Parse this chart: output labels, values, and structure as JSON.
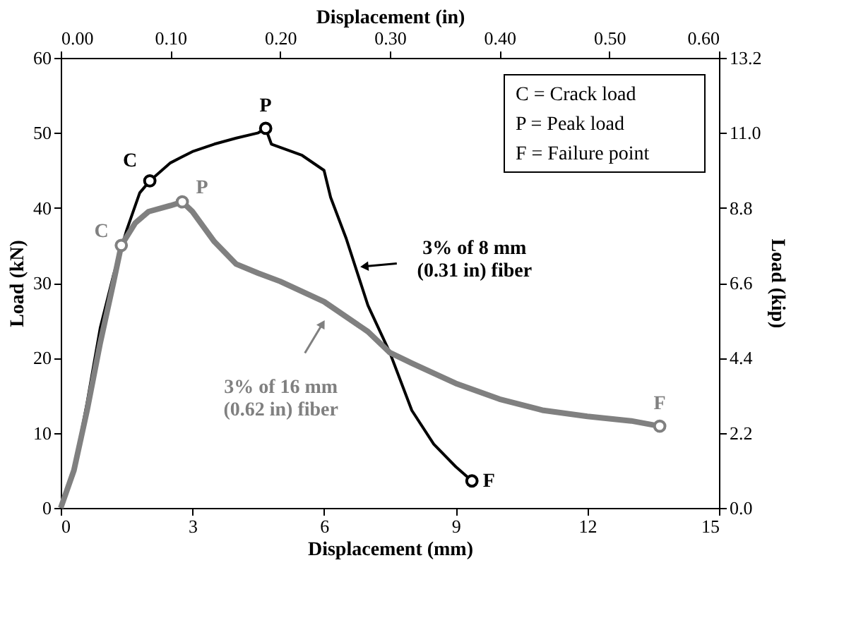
{
  "chart_data": {
    "type": "line",
    "xlabel": "Displacement (mm)",
    "ylabel": "Load (kN)",
    "x2label": "Displacement (in)",
    "y2label": "Load (kip)",
    "xlim": [
      0,
      15
    ],
    "xticks": [
      0,
      3,
      6,
      9,
      12,
      15
    ],
    "ylim": [
      0,
      60
    ],
    "yticks": [
      0,
      10,
      20,
      30,
      40,
      50,
      60
    ],
    "x2lim": [
      0,
      0.6
    ],
    "x2ticks": [
      {
        "value": 0,
        "label": "0.00"
      },
      {
        "value": 0.1,
        "label": "0.10"
      },
      {
        "value": 0.2,
        "label": "0.20"
      },
      {
        "value": 0.3,
        "label": "0.30"
      },
      {
        "value": 0.4,
        "label": "0.40"
      },
      {
        "value": 0.5,
        "label": "0.50"
      },
      {
        "value": 0.6,
        "label": "0.60"
      }
    ],
    "y2lim": [
      0,
      13.2
    ],
    "y2ticks": [
      {
        "value": 0,
        "label": "0.0"
      },
      2.2,
      4.4,
      6.6,
      8.8,
      {
        "value": 11,
        "label": "11.0"
      },
      13.2
    ],
    "grid": false,
    "legend": false,
    "marker": "none",
    "line_style": "solid",
    "series": [
      {
        "color": "#000000",
        "x": [
          0,
          0.3,
          0.6,
          0.9,
          1.2,
          1.5,
          1.8,
          2.03,
          2.5,
          3.0,
          3.5,
          4.0,
          4.5,
          4.67,
          4.8,
          5.5,
          6.0,
          6.15,
          6.5,
          7.0,
          7.5,
          8.0,
          8.5,
          9.0,
          9.37
        ],
        "values": [
          0,
          5,
          14,
          24,
          31,
          37,
          42,
          43.6,
          46,
          47.5,
          48.5,
          49.3,
          50,
          50.6,
          48.5,
          47,
          45,
          41.4,
          36,
          27,
          20.7,
          13,
          8.5,
          5.5,
          3.6
        ]
      },
      {
        "color": "#808080",
        "x": [
          0,
          0.3,
          0.6,
          0.9,
          1.2,
          1.38,
          1.7,
          2.0,
          2.5,
          2.77,
          3.0,
          3.5,
          4.0,
          4.5,
          5.0,
          6.0,
          7.0,
          7.5,
          8.0,
          9.0,
          10.0,
          11.0,
          12.0,
          13.0,
          13.65
        ],
        "values": [
          0,
          5,
          13,
          22,
          30,
          35,
          38,
          39.5,
          40.3,
          40.8,
          39.5,
          35.5,
          32.5,
          31.3,
          30.2,
          27.5,
          23.5,
          20.7,
          19.3,
          16.6,
          14.5,
          13,
          12.2,
          11.6,
          10.9
        ]
      },
      {
        "type": "scatter",
        "marker": "circle",
        "color": "#000000",
        "x": [
          2.03,
          4.67,
          9.37
        ],
        "values": [
          43.6,
          50.6,
          3.6
        ]
      },
      {
        "type": "scatter",
        "marker": "circle",
        "color": "#808080",
        "x": [
          1.38,
          2.77,
          13.65
        ],
        "values": [
          35.0,
          40.8,
          10.9
        ]
      }
    ],
    "annotations": [
      {
        "text": "C",
        "x": 2.03,
        "y": 43.6
      },
      {
        "text": "P",
        "x": 4.67,
        "y": 50.6
      },
      {
        "text": "F",
        "x": 9.37,
        "y": 3.6
      },
      {
        "text": "C",
        "x": 1.38,
        "y": 35.0
      },
      {
        "text": "P",
        "x": 2.77,
        "y": 40.8
      },
      {
        "text": "F",
        "x": 13.65,
        "y": 10.9
      },
      {
        "text": "3% of 8 mm\n(0.31 in) fiber",
        "x": 6.95,
        "y": 32.2
      },
      {
        "text": "3% of 16 mm\n(0.62 in) fiber",
        "x": 5.95,
        "y": 24.4
      },
      "C = Crack load",
      "P = Peak load",
      "F = Failure point"
    ]
  }
}
